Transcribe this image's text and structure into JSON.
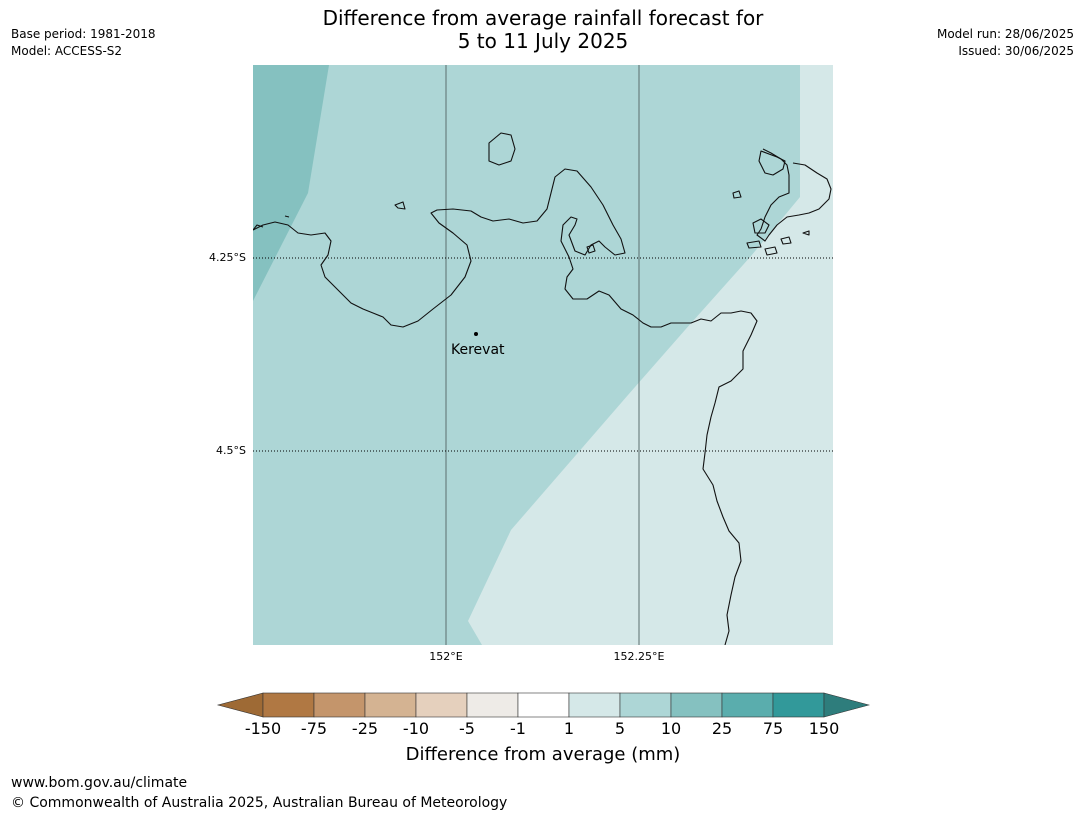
{
  "header": {
    "title_line1": "Difference from average rainfall forecast for",
    "title_line2": "5 to 11 July 2025",
    "base_period": "Base period: 1981-2018",
    "model": "Model: ACCESS-S2",
    "model_run": "Model run: 28/06/2025",
    "issued": "Issued: 30/06/2025"
  },
  "map": {
    "lat_labels": [
      "4.25°S",
      "4.5°S"
    ],
    "lon_labels": [
      "152°E",
      "152.25°E"
    ],
    "place": {
      "name": "Kerevat"
    },
    "region_colors": {
      "10_to_25": "#85c1c0",
      "5_to_10": "#add6d6",
      "1_to_5": "#d5e8e8"
    }
  },
  "colorbar": {
    "title": "Difference from average (mm)",
    "ticks": [
      "-150",
      "-75",
      "-25",
      "-10",
      "-5",
      "-1",
      "1",
      "5",
      "10",
      "25",
      "75",
      "150"
    ],
    "colors": [
      "#9e6a35",
      "#b07843",
      "#c4956b",
      "#d4b392",
      "#e5d0bd",
      "#eeebe7",
      "#ffffff",
      "#d5e8e8",
      "#add6d6",
      "#85c1c0",
      "#5aadad",
      "#32999a",
      "#2e7d7c"
    ]
  },
  "footer": {
    "url": "www.bom.gov.au/climate",
    "copyright": "© Commonwealth of Australia 2025, Australian Bureau of Meteorology"
  }
}
